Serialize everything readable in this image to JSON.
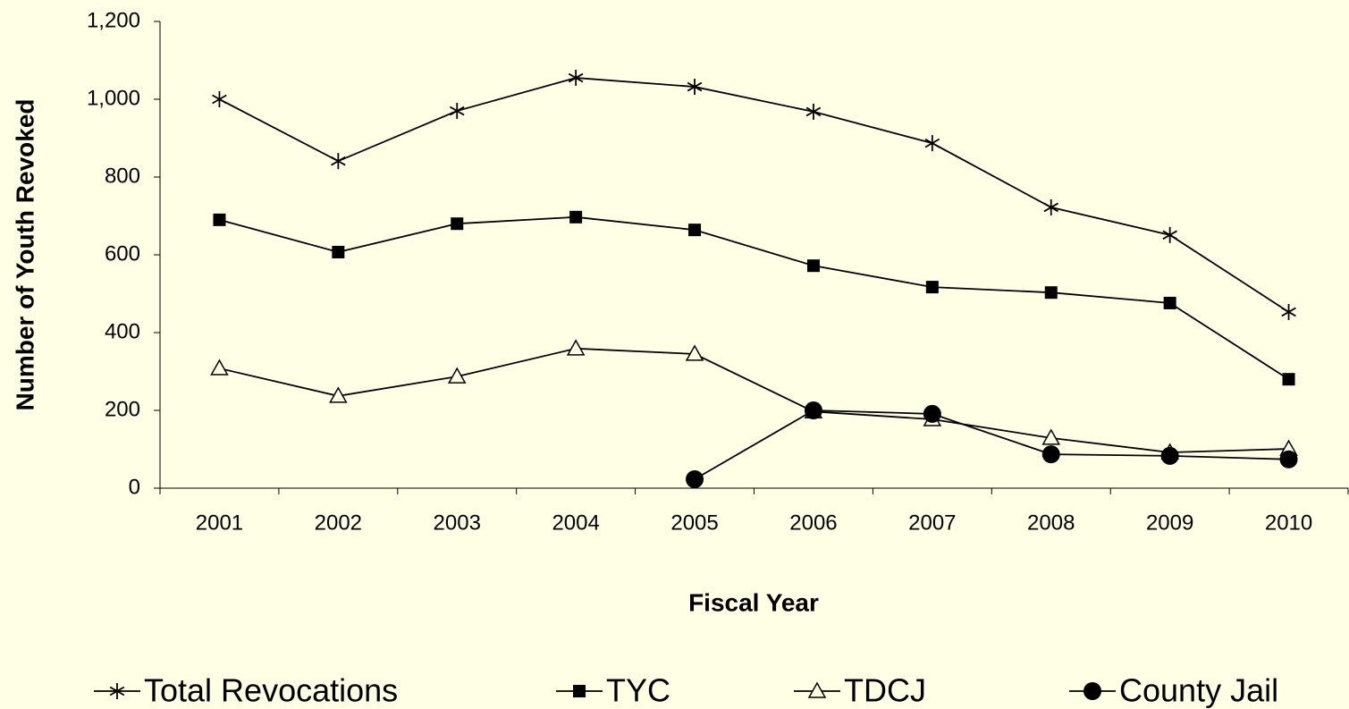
{
  "chart_data": {
    "type": "line",
    "x_label": "Fiscal Year",
    "y_label": "Number of Youth Revoked",
    "categories": [
      "2001",
      "2002",
      "2003",
      "2004",
      "2005",
      "2006",
      "2007",
      "2008",
      "2009",
      "2010"
    ],
    "series": [
      {
        "name": "Total Revocations",
        "color": "#000000",
        "marker": "asterisk",
        "values": [
          1000,
          841,
          970,
          1055,
          1032,
          968,
          887,
          722,
          651,
          453
        ]
      },
      {
        "name": "TYC",
        "color": "#000000",
        "marker": "square",
        "values": [
          690,
          607,
          680,
          697,
          664,
          572,
          517,
          503,
          476,
          280
        ]
      },
      {
        "name": "TDCJ",
        "color": "#000000",
        "marker": "triangle",
        "values": [
          308,
          237,
          287,
          359,
          345,
          197,
          177,
          129,
          92,
          101
        ]
      },
      {
        "name": "County Jail",
        "color": "#000000",
        "marker": "circle",
        "values": [
          null,
          null,
          null,
          null,
          23,
          200,
          191,
          87,
          83,
          74
        ]
      }
    ],
    "ylim": [
      0,
      1200
    ],
    "yticks": [
      0,
      200,
      400,
      600,
      800,
      {
        "value": 1000,
        "label": "1,000"
      },
      {
        "value": 1200,
        "label": "1,200"
      }
    ]
  }
}
